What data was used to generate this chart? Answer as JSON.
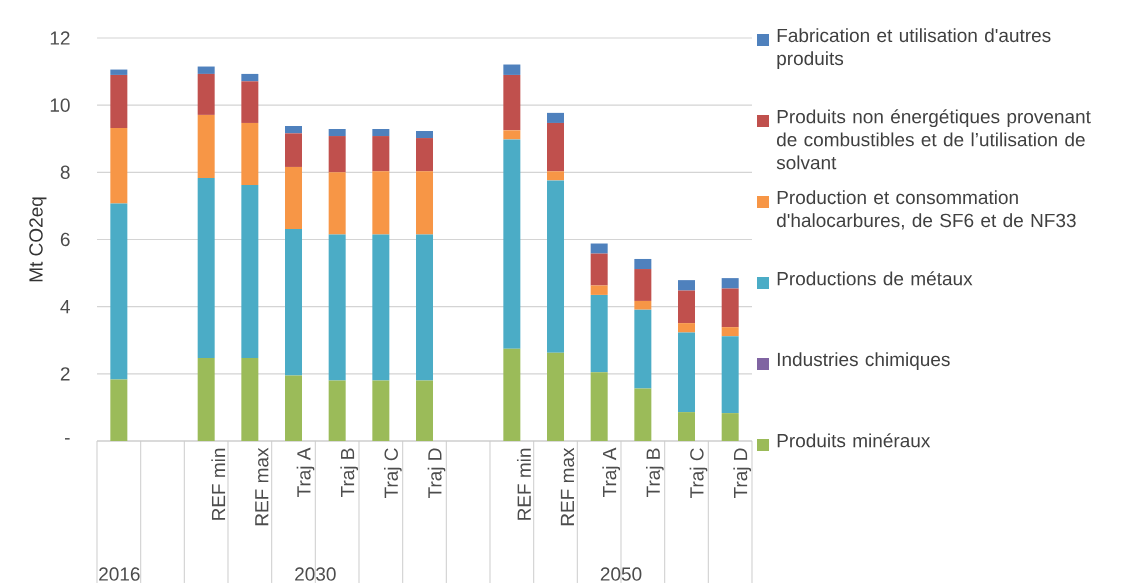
{
  "chart_data": {
    "type": "bar",
    "stacked": true,
    "ylabel": "Mt CO2eq",
    "categories": [
      null,
      null,
      "REF min",
      "REF max",
      "Traj A",
      "Traj B",
      "Traj C",
      "Traj D",
      null,
      "REF min",
      "REF max",
      "Traj A",
      "Traj B",
      "Traj C",
      "Traj D"
    ],
    "series": [
      {
        "name": "Produits minéraux",
        "color": "#9bbb59",
        "values": [
          1.83,
          null,
          2.47,
          2.47,
          1.95,
          1.8,
          1.8,
          1.8,
          null,
          2.75,
          2.63,
          2.05,
          1.56,
          0.86,
          0.83
        ]
      },
      {
        "name": "Industries chimiques",
        "color": "#8064a2",
        "values": [
          0,
          null,
          0,
          0,
          0,
          0,
          0,
          0,
          null,
          0,
          0,
          0,
          0,
          0,
          0
        ]
      },
      {
        "name": "Productions de métaux",
        "color": "#4bacc6",
        "values": [
          5.24,
          null,
          5.36,
          5.15,
          4.36,
          4.35,
          4.35,
          4.35,
          null,
          6.23,
          5.13,
          2.3,
          2.35,
          2.37,
          2.29
        ]
      },
      {
        "name": "Production et consommation d'halocarbures, de SF6 et de NF33",
        "color": "#f79646",
        "values": [
          2.25,
          null,
          1.88,
          1.85,
          1.85,
          1.85,
          1.88,
          1.88,
          null,
          0.27,
          0.27,
          0.28,
          0.26,
          0.28,
          0.27
        ]
      },
      {
        "name": "Produits non énergétiques provenant de combustibles et de l’utilisation de solvant",
        "color": "#c0504d",
        "values": [
          1.58,
          null,
          1.22,
          1.24,
          1.0,
          1.08,
          1.05,
          0.99,
          null,
          1.65,
          1.44,
          0.95,
          0.95,
          0.97,
          1.15
        ]
      },
      {
        "name": "Fabrication et utilisation d'autres produits",
        "color": "#4f81bd",
        "values": [
          0.16,
          null,
          0.22,
          0.22,
          0.22,
          0.21,
          0.21,
          0.21,
          null,
          0.31,
          0.3,
          0.3,
          0.3,
          0.31,
          0.31
        ]
      }
    ],
    "annotations": [
      "2016",
      "2030",
      "2050"
    ],
    "ylim": [
      0,
      12
    ],
    "yticks": [
      {
        "value": 0,
        "label": "-"
      },
      2,
      4,
      6,
      8,
      10,
      12
    ],
    "grid": "y",
    "legend": "right"
  }
}
